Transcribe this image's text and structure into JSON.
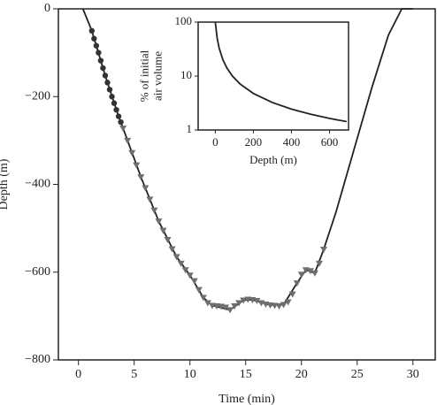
{
  "chart_data": [
    {
      "type": "line",
      "xlabel": "Time (min)",
      "ylabel": [
        "Depth (m)"
      ],
      "xlim": [
        -1.8,
        32
      ],
      "ylim": [
        -800,
        0
      ],
      "xticks": [
        0,
        5,
        10,
        15,
        20,
        25,
        30
      ],
      "yticks": [
        {
          "value": -800,
          "label": "−800"
        },
        {
          "value": -600,
          "label": "−600"
        },
        {
          "value": -400,
          "label": "−400"
        },
        {
          "value": -200,
          "label": "−200"
        },
        0
      ],
      "series": [
        {
          "style": "line",
          "color": "#222222",
          "x": [
            0.4,
            1.2,
            2.4,
            3.6,
            4.0,
            5.6,
            7.2,
            8.8,
            10.0,
            11.2,
            12.0,
            13.6,
            14.8,
            15.6,
            17.2,
            18.4,
            19.6,
            20.4,
            21.2,
            22.0,
            23.1,
            24.7,
            26.3,
            27.8,
            29.0,
            30.0
          ],
          "values": [
            0,
            -50,
            -152,
            -245,
            -272,
            -383,
            -484,
            -565,
            -607,
            -658,
            -676,
            -686,
            -664,
            -663,
            -675,
            -674,
            -625,
            -595,
            -602,
            -548,
            -463,
            -322,
            -181,
            -60,
            0,
            0
          ]
        },
        {
          "style": "circle",
          "color": "#333333",
          "x": [
            1.2,
            1.4,
            1.6,
            1.8,
            2.0,
            2.2,
            2.4,
            2.6,
            2.8,
            3.0,
            3.2,
            3.4,
            3.6,
            3.8
          ],
          "values": [
            -50,
            -68,
            -84,
            -100,
            -118,
            -135,
            -152,
            -168,
            -184,
            -200,
            -215,
            -230,
            -245,
            -258
          ]
        },
        {
          "style": "triangle",
          "color": "#6e6e6e",
          "x": [
            4.0,
            4.4,
            4.8,
            5.2,
            5.6,
            6.0,
            6.4,
            6.8,
            7.2,
            7.6,
            8.0,
            8.4,
            8.8,
            9.2,
            9.6,
            10.0,
            10.4,
            10.8,
            11.2,
            11.6,
            12.0,
            12.4,
            12.8,
            13.2,
            13.6,
            14.0,
            14.4,
            14.8,
            15.2,
            15.6,
            16.0,
            16.4,
            16.8,
            17.2,
            17.6,
            18.0,
            18.4,
            18.8,
            19.2,
            19.6,
            20.0,
            20.4,
            20.8,
            21.2,
            21.6,
            22.0
          ],
          "values": [
            -272,
            -300,
            -328,
            -356,
            -383,
            -408,
            -434,
            -459,
            -484,
            -505,
            -526,
            -547,
            -565,
            -580,
            -595,
            -607,
            -620,
            -640,
            -658,
            -670,
            -676,
            -677,
            -678,
            -680,
            -686,
            -677,
            -670,
            -664,
            -662,
            -663,
            -665,
            -670,
            -673,
            -675,
            -676,
            -677,
            -674,
            -668,
            -650,
            -625,
            -605,
            -595,
            -597,
            -602,
            -580,
            -548
          ]
        }
      ]
    },
    {
      "type": "line",
      "xlabel": "Depth (m)",
      "ylabel": [
        "% of initial",
        "air volume"
      ],
      "xlim": [
        -90,
        700
      ],
      "ylim": [
        1,
        100
      ],
      "ylog": true,
      "xticks": [
        0,
        200,
        400,
        600
      ],
      "yticks": [
        1,
        10,
        100
      ],
      "series": [
        {
          "style": "line",
          "color": "#222222",
          "x": [
            0,
            10,
            20,
            40,
            60,
            90,
            130,
            200,
            300,
            400,
            500,
            600,
            690
          ],
          "values": [
            100,
            50,
            33.3,
            20,
            14.3,
            10,
            7.14,
            4.76,
            3.23,
            2.44,
            1.96,
            1.64,
            1.43
          ]
        }
      ]
    }
  ]
}
